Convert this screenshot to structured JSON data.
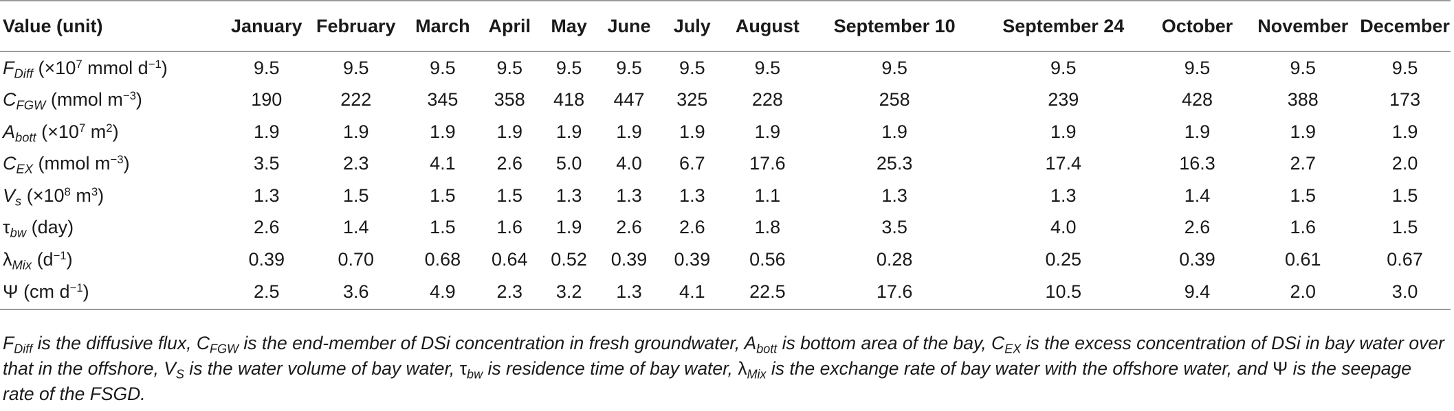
{
  "table": {
    "header": [
      "Value (unit)",
      "January",
      "February",
      "March",
      "April",
      "May",
      "June",
      "July",
      "August",
      "September 10",
      "September 24",
      "October",
      "November",
      "December"
    ],
    "rows": [
      {
        "param": {
          "sym": "F",
          "sub": "Diff",
          "pre": " (×10",
          "sup": "7",
          "post": " mmol d",
          "sup2": "−1",
          "close": ")"
        },
        "values": [
          "9.5",
          "9.5",
          "9.5",
          "9.5",
          "9.5",
          "9.5",
          "9.5",
          "9.5",
          "9.5",
          "9.5",
          "9.5",
          "9.5",
          "9.5"
        ]
      },
      {
        "param": {
          "sym": "C",
          "sub": "FGW",
          "pre": " (mmol m",
          "sup": "−3",
          "close": ")"
        },
        "values": [
          "190",
          "222",
          "345",
          "358",
          "418",
          "447",
          "325",
          "228",
          "258",
          "239",
          "428",
          "388",
          "173"
        ]
      },
      {
        "param": {
          "sym": "A",
          "sub": "bott",
          "pre": " (×10",
          "sup": "7",
          "post": " m",
          "sup2": "2",
          "close": ")"
        },
        "values": [
          "1.9",
          "1.9",
          "1.9",
          "1.9",
          "1.9",
          "1.9",
          "1.9",
          "1.9",
          "1.9",
          "1.9",
          "1.9",
          "1.9",
          "1.9"
        ]
      },
      {
        "param": {
          "sym": "C",
          "sub": "EX",
          "pre": " (mmol m",
          "sup": "−3",
          "close": ")"
        },
        "values": [
          "3.5",
          "2.3",
          "4.1",
          "2.6",
          "5.0",
          "4.0",
          "6.7",
          "17.6",
          "25.3",
          "17.4",
          "16.3",
          "2.7",
          "2.0"
        ]
      },
      {
        "param": {
          "sym": "V",
          "sub": "s",
          "pre": " (×10",
          "sup": "8",
          "post": " m",
          "sup2": "3",
          "close": ")"
        },
        "values": [
          "1.3",
          "1.5",
          "1.5",
          "1.5",
          "1.3",
          "1.3",
          "1.3",
          "1.1",
          "1.3",
          "1.3",
          "1.4",
          "1.5",
          "1.5"
        ]
      },
      {
        "param": {
          "sym": "τ",
          "sub": "bw",
          "pre": " (day)"
        },
        "values": [
          "2.6",
          "1.4",
          "1.5",
          "1.6",
          "1.9",
          "2.6",
          "2.6",
          "1.8",
          "3.5",
          "4.0",
          "2.6",
          "1.6",
          "1.5"
        ]
      },
      {
        "param": {
          "sym": "λ",
          "sub": "Mix",
          "pre": " (d",
          "sup": "−1",
          "close": ")"
        },
        "values": [
          "0.39",
          "0.70",
          "0.68",
          "0.64",
          "0.52",
          "0.39",
          "0.39",
          "0.56",
          "0.28",
          "0.25",
          "0.39",
          "0.61",
          "0.67"
        ]
      },
      {
        "param": {
          "sym": "Ψ",
          "pre": " (cm d",
          "sup": "−1",
          "close": ")"
        },
        "values": [
          "2.5",
          "3.6",
          "4.9",
          "2.3",
          "3.2",
          "1.3",
          "4.1",
          "22.5",
          "17.6",
          "10.5",
          "9.4",
          "2.0",
          "3.0"
        ]
      }
    ]
  },
  "footnote": {
    "parts": [
      {
        "t": "F"
      },
      {
        "sub": "Diff"
      },
      {
        "t": " is the diffusive flux, C"
      },
      {
        "sub": "FGW"
      },
      {
        "t": " is the end-member of DSi concentration in fresh groundwater, A"
      },
      {
        "sub": "bott"
      },
      {
        "t": " is bottom area of the bay, C"
      },
      {
        "sub": "EX"
      },
      {
        "t": " is the excess concentration of DSi in bay water over that in the offshore, V"
      },
      {
        "sub": "S"
      },
      {
        "t": " is the water volume of bay water, "
      },
      {
        "sym": "τ"
      },
      {
        "sub": "bw"
      },
      {
        "t": " is residence time of bay water, "
      },
      {
        "sym": "λ"
      },
      {
        "sub": "Mix"
      },
      {
        "t": " is the exchange rate of bay water with the offshore water, and "
      },
      {
        "sym": "Ψ"
      },
      {
        "t": " is the seepage rate of the FSGD."
      }
    ]
  }
}
